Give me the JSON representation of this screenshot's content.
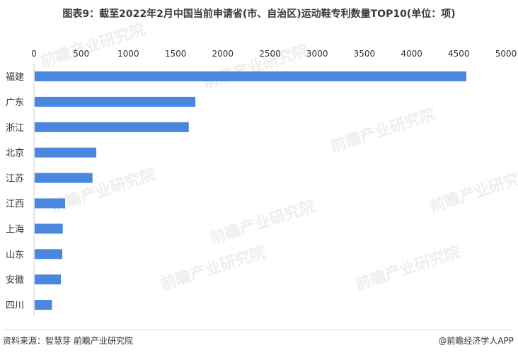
{
  "chart_data": {
    "type": "bar",
    "orientation": "horizontal",
    "title": "图表9：截至2022年2月中国当前申请省(市、自治区)运动鞋专利数量TOP10(单位：项)",
    "categories": [
      "福建",
      "广东",
      "浙江",
      "北京",
      "江苏",
      "江西",
      "上海",
      "山东",
      "安徽",
      "四川"
    ],
    "values": [
      4580,
      1710,
      1640,
      660,
      620,
      330,
      305,
      300,
      285,
      190
    ],
    "xticks": [
      0,
      500,
      1000,
      1500,
      2000,
      2500,
      3000,
      3500,
      4000,
      4500,
      5000
    ],
    "xlim": [
      0,
      5000
    ],
    "axis_position": "top",
    "grid": false,
    "bar_color": "#4a88e0"
  },
  "footer": {
    "source": "资料来源：智慧芽 前瞻产业研究院",
    "brand": "@前瞻经济学人APP"
  },
  "watermark": "前瞻产业研究院"
}
